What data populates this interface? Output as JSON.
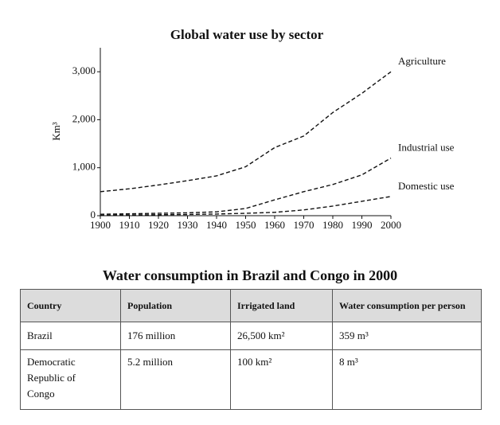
{
  "chart_data": {
    "type": "line",
    "title": "Global water use by sector",
    "y_label": "Km³",
    "x": [
      1900,
      1910,
      1920,
      1930,
      1940,
      1950,
      1960,
      1970,
      1980,
      1990,
      2000
    ],
    "series": [
      {
        "name": "Agriculture",
        "color": "#111111",
        "values": [
          500,
          560,
          640,
          730,
          830,
          1020,
          1420,
          1660,
          2150,
          2550,
          3000
        ]
      },
      {
        "name": "Industrial use",
        "color": "#111111",
        "values": [
          30,
          40,
          50,
          60,
          80,
          150,
          330,
          500,
          650,
          850,
          1200
        ]
      },
      {
        "name": "Domestic use",
        "color": "#111111",
        "values": [
          10,
          15,
          20,
          25,
          35,
          50,
          70,
          120,
          200,
          300,
          400
        ]
      }
    ],
    "xlim": [
      1900,
      2000
    ],
    "xticks": [
      1900,
      1910,
      1920,
      1930,
      1940,
      1950,
      1960,
      1970,
      1980,
      1990,
      2000
    ],
    "ylim": [
      0,
      3500
    ],
    "yticks": [
      0,
      {
        "value": 1000,
        "label": "1,000"
      },
      {
        "value": 2000,
        "label": "2,000"
      },
      {
        "value": 3000,
        "label": "3,000"
      }
    ],
    "grid": false,
    "dashed": true
  },
  "table": {
    "title": "Water consumption in Brazil and Congo in 2000",
    "header": [
      "Country",
      "Population",
      "Irrigated land",
      "Water consumption per person"
    ],
    "rows": [
      [
        "Brazil",
        "176 million",
        "26,500 km²",
        "359 m³"
      ],
      [
        "Democratic Republic of Congo",
        "5.2 million",
        "100 km²",
        "8 m³"
      ]
    ]
  }
}
